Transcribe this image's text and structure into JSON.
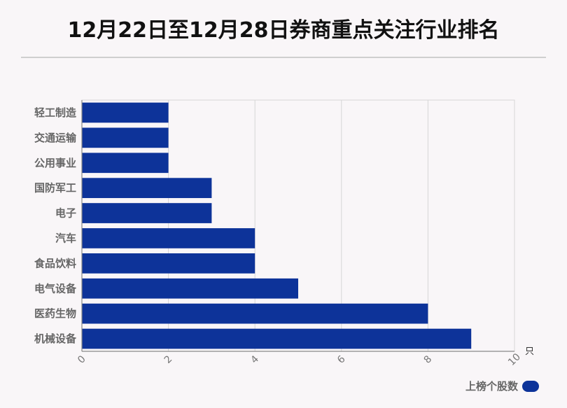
{
  "title": "12月22日至12月28日券商重点关注行业排名",
  "legend": {
    "label": "上榜个股数",
    "color": "#0d3399"
  },
  "chart_data": {
    "type": "bar",
    "orientation": "horizontal",
    "title": "12月22日至12月28日券商重点关注行业排名",
    "categories": [
      "轻工制造",
      "交通运输",
      "公用事业",
      "国防军工",
      "电子",
      "汽车",
      "食品饮料",
      "电气设备",
      "医药生物",
      "机械设备"
    ],
    "series": [
      {
        "name": "上榜个股数",
        "values": [
          2,
          2,
          2,
          3,
          3,
          4,
          4,
          5,
          8,
          9
        ]
      }
    ],
    "xlim": [
      0,
      10
    ],
    "xticks": [
      0,
      2,
      4,
      6,
      8,
      10
    ],
    "xunit": "只",
    "grid": true,
    "legend_position": "bottom-right",
    "bar_color": "#0d3399"
  }
}
